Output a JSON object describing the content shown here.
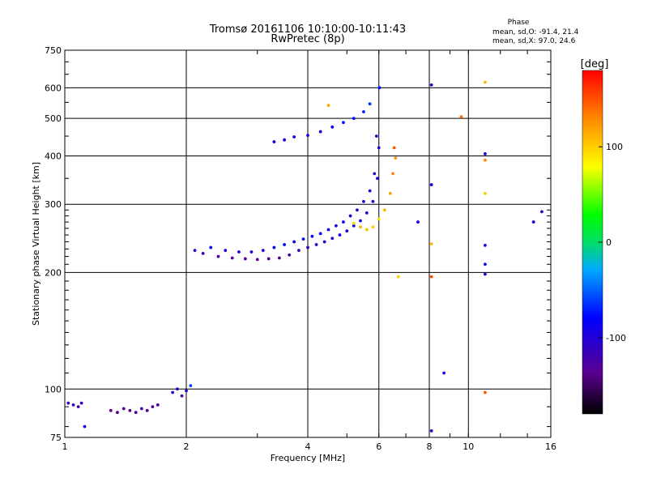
{
  "chart_data": {
    "type": "scatter",
    "title": "Tromsø 20161106 10:10:00-10:11:43",
    "subtitle": "RwPretec (8p)",
    "xlabel": "Frequency [MHz]",
    "ylabel": "Stationary phase Virtual Height [km]",
    "x_scale": "log",
    "y_scale": "log",
    "xlim": [
      1,
      16
    ],
    "ylim": [
      75,
      750
    ],
    "grid": true,
    "x_ticks": [
      "1",
      "2",
      "4",
      "6",
      "8",
      "10",
      "16"
    ],
    "y_ticks": [
      "750",
      "600",
      "500",
      "400",
      "300",
      "200",
      "100",
      "75"
    ],
    "phase_stats": {
      "heading": "Phase",
      "line1": "mean, sd,O: -91.4, 21.4",
      "line2": "mean, sd,X:  97.0, 24.6"
    },
    "colorbar": {
      "label": "[deg]",
      "range": [
        -180,
        180
      ],
      "ticks": [
        "100",
        "0",
        "-100"
      ]
    },
    "series": [
      {
        "points": [
          [
            1.02,
            92,
            -120
          ],
          [
            1.05,
            91,
            -115
          ],
          [
            1.08,
            90,
            -125
          ],
          [
            1.1,
            92,
            -110
          ],
          [
            1.12,
            80,
            -90
          ],
          [
            1.3,
            88,
            -135
          ],
          [
            1.35,
            87,
            -140
          ],
          [
            1.4,
            89,
            -130
          ],
          [
            1.45,
            88,
            -138
          ],
          [
            1.5,
            87,
            -132
          ],
          [
            1.55,
            89,
            -128
          ],
          [
            1.6,
            88,
            -136
          ],
          [
            1.65,
            90,
            -125
          ],
          [
            1.7,
            91,
            -120
          ],
          [
            1.85,
            98,
            -110
          ],
          [
            1.9,
            100,
            -105
          ],
          [
            1.95,
            96,
            -130
          ],
          [
            2.0,
            99,
            -100
          ],
          [
            2.05,
            102,
            -60
          ],
          [
            2.1,
            228,
            -110
          ],
          [
            2.2,
            224,
            -120
          ],
          [
            2.4,
            220,
            -125
          ],
          [
            2.6,
            218,
            -130
          ],
          [
            2.8,
            217,
            -135
          ],
          [
            3.0,
            216,
            -138
          ],
          [
            3.2,
            217,
            -135
          ],
          [
            3.4,
            218,
            -130
          ],
          [
            3.6,
            222,
            -125
          ],
          [
            3.8,
            228,
            -120
          ],
          [
            4.0,
            232,
            -115
          ],
          [
            4.2,
            236,
            -110
          ],
          [
            4.4,
            240,
            -105
          ],
          [
            4.6,
            245,
            -100
          ],
          [
            4.8,
            250,
            -95
          ],
          [
            5.0,
            256,
            -90
          ],
          [
            5.2,
            264,
            -88
          ],
          [
            5.4,
            272,
            -92
          ],
          [
            5.6,
            285,
            -95
          ],
          [
            5.8,
            305,
            -100
          ],
          [
            5.95,
            350,
            -102
          ],
          [
            6.0,
            420,
            -105
          ],
          [
            6.02,
            600,
            -75
          ],
          [
            2.3,
            232,
            -85
          ],
          [
            2.5,
            228,
            -88
          ],
          [
            2.7,
            226,
            -90
          ],
          [
            2.9,
            226,
            -92
          ],
          [
            3.1,
            228,
            -90
          ],
          [
            3.3,
            232,
            -85
          ],
          [
            3.5,
            236,
            -82
          ],
          [
            3.7,
            240,
            -80
          ],
          [
            3.9,
            244,
            -78
          ],
          [
            4.1,
            248,
            -80
          ],
          [
            4.3,
            252,
            -82
          ],
          [
            4.5,
            258,
            -85
          ],
          [
            4.7,
            264,
            -88
          ],
          [
            4.9,
            270,
            -90
          ],
          [
            5.1,
            280,
            -95
          ],
          [
            5.3,
            290,
            -98
          ],
          [
            5.5,
            305,
            -100
          ],
          [
            5.7,
            325,
            -104
          ],
          [
            5.85,
            360,
            -108
          ],
          [
            5.92,
            450,
            -110
          ],
          [
            3.3,
            435,
            -100
          ],
          [
            3.5,
            440,
            -95
          ],
          [
            3.7,
            448,
            -92
          ],
          [
            4.0,
            452,
            -90
          ],
          [
            4.3,
            462,
            -95
          ],
          [
            4.6,
            475,
            -85
          ],
          [
            4.9,
            488,
            -80
          ],
          [
            5.2,
            500,
            -75
          ],
          [
            5.5,
            520,
            -70
          ],
          [
            5.7,
            545,
            -65
          ],
          [
            4.5,
            540,
            115
          ],
          [
            5.2,
            268,
            95
          ],
          [
            5.4,
            262,
            110
          ],
          [
            5.6,
            258,
            105
          ],
          [
            5.8,
            262,
            100
          ],
          [
            6.0,
            275,
            95
          ],
          [
            6.2,
            290,
            110
          ],
          [
            6.4,
            320,
            120
          ],
          [
            6.5,
            360,
            130
          ],
          [
            6.6,
            395,
            125
          ],
          [
            6.55,
            420,
            150
          ],
          [
            6.7,
            195,
            100
          ],
          [
            7.5,
            270,
            -90
          ],
          [
            8.1,
            610,
            -110
          ],
          [
            8.1,
            337,
            -105
          ],
          [
            8.1,
            237,
            110
          ],
          [
            8.1,
            195,
            150
          ],
          [
            8.7,
            110,
            -100
          ],
          [
            9.6,
            505,
            140
          ],
          [
            11.0,
            620,
            110
          ],
          [
            11.0,
            405,
            -85
          ],
          [
            11.0,
            390,
            130
          ],
          [
            11.0,
            320,
            100
          ],
          [
            11.0,
            235,
            -90
          ],
          [
            11.0,
            210,
            -85
          ],
          [
            11.0,
            198,
            -100
          ],
          [
            11.0,
            98,
            150
          ],
          [
            14.5,
            270,
            -100
          ],
          [
            15.2,
            287,
            -100
          ],
          [
            8.1,
            78,
            -110
          ]
        ]
      }
    ]
  }
}
